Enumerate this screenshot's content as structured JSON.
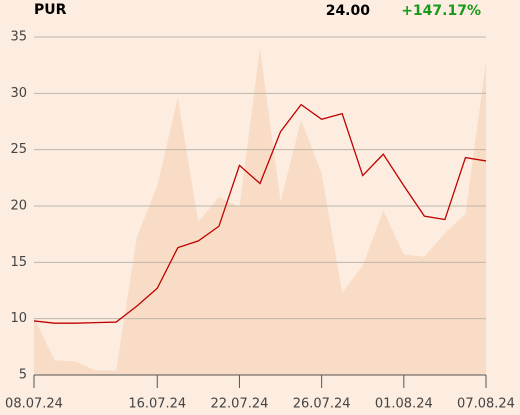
{
  "header": {
    "symbol": "PUR",
    "price": "24.00",
    "change": "+147.17%"
  },
  "chart_data": {
    "type": "line",
    "categories": [
      "08.07.24",
      null,
      null,
      null,
      null,
      null,
      "16.07.24",
      null,
      null,
      null,
      "22.07.24",
      null,
      null,
      null,
      "26.07.24",
      null,
      null,
      null,
      "01.08.24",
      null,
      null,
      null,
      "07.08.24"
    ],
    "series": [
      {
        "type": "area",
        "color": "#f8dcc5",
        "values": [
          10.1,
          6.3,
          6.2,
          5.4,
          5.4,
          17.2,
          21.8,
          29.6,
          18.6,
          20.8,
          19.9,
          34.0,
          20.4,
          27.6,
          22.9,
          12.3,
          14.7,
          19.6,
          15.7,
          15.5,
          17.6,
          19.3,
          32.8
        ]
      },
      {
        "type": "line",
        "color": "#c00000",
        "values": [
          9.8,
          9.6,
          9.6,
          9.65,
          9.7,
          11.1,
          12.7,
          16.3,
          16.9,
          18.2,
          23.6,
          22.0,
          26.6,
          29.0,
          27.7,
          28.2,
          22.7,
          24.6,
          21.8,
          19.1,
          18.8,
          24.3,
          24.0
        ]
      }
    ],
    "ylim": [
      5,
      35
    ],
    "yticks": [
      5,
      10,
      15,
      20,
      25,
      30,
      35
    ],
    "grid": true
  }
}
